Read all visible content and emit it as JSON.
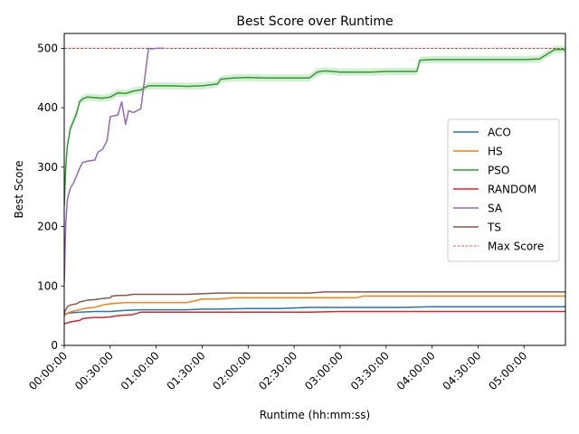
{
  "chart_data": {
    "type": "line",
    "title": "Best Score over Runtime",
    "xlabel": "Runtime (hh:mm:ss)",
    "ylabel": "Best Score",
    "x_unit": "seconds",
    "xlim": [
      0,
      19620
    ],
    "ylim": [
      0,
      525
    ],
    "x_ticks": [
      {
        "value": 0,
        "label": "00:00:00"
      },
      {
        "value": 1800,
        "label": "00:30:00"
      },
      {
        "value": 3600,
        "label": "01:00:00"
      },
      {
        "value": 5400,
        "label": "01:30:00"
      },
      {
        "value": 7200,
        "label": "02:00:00"
      },
      {
        "value": 9000,
        "label": "02:30:00"
      },
      {
        "value": 10800,
        "label": "03:00:00"
      },
      {
        "value": 12600,
        "label": "03:30:00"
      },
      {
        "value": 14400,
        "label": "04:00:00"
      },
      {
        "value": 16200,
        "label": "04:30:00"
      },
      {
        "value": 18000,
        "label": "05:00:00"
      }
    ],
    "y_ticks": [
      0,
      100,
      200,
      300,
      400,
      500
    ],
    "grid": false,
    "legend_position": "center-right",
    "max_score": {
      "name": "Max Score",
      "value": 500,
      "color": "#d62728"
    },
    "series": [
      {
        "name": "ACO",
        "color": "#1f77b4",
        "x": [
          0,
          300,
          600,
          1200,
          1800,
          2100,
          2400,
          3000,
          3600,
          4200,
          4800,
          5400,
          6000,
          7200,
          8400,
          9000,
          9600,
          10800,
          12000,
          13200,
          14400,
          15600,
          16800,
          18000,
          19620
        ],
        "y": [
          53,
          55,
          56,
          57,
          57,
          58,
          59,
          60,
          60,
          60,
          60,
          61,
          61,
          62,
          62,
          63,
          64,
          64,
          64,
          64,
          65,
          65,
          65,
          65,
          65
        ]
      },
      {
        "name": "HS",
        "color": "#ff7f0e",
        "x": [
          0,
          150,
          300,
          600,
          900,
          1200,
          1500,
          1800,
          2100,
          2400,
          3000,
          3600,
          4200,
          4800,
          5100,
          5400,
          6000,
          6600,
          7200,
          8400,
          9600,
          10800,
          11400,
          11700,
          12600,
          14400,
          16200,
          18000,
          19620
        ],
        "y": [
          50,
          55,
          57,
          60,
          63,
          64,
          68,
          70,
          71,
          72,
          72,
          72,
          72,
          72,
          75,
          78,
          78,
          80,
          80,
          80,
          80,
          80,
          80,
          83,
          83,
          83,
          83,
          83,
          83
        ]
      },
      {
        "name": "PSO",
        "color": "#2ca02c",
        "x": [
          0,
          60,
          120,
          240,
          480,
          600,
          720,
          900,
          1200,
          1500,
          1800,
          2100,
          2400,
          2700,
          3000,
          3300,
          3600,
          4200,
          4800,
          5400,
          6000,
          6120,
          6600,
          7200,
          7800,
          8400,
          9000,
          9600,
          9900,
          10200,
          10800,
          11400,
          12000,
          12600,
          13200,
          13800,
          13920,
          14400,
          15000,
          15600,
          16200,
          16800,
          17400,
          18000,
          18600,
          19200,
          19620
        ],
        "y": [
          235,
          300,
          335,
          365,
          390,
          410,
          415,
          418,
          417,
          416,
          418,
          425,
          424,
          428,
          430,
          437,
          437,
          437,
          436,
          437,
          440,
          448,
          450,
          451,
          450,
          450,
          450,
          450,
          460,
          462,
          460,
          460,
          460,
          461,
          461,
          461,
          480,
          481,
          481,
          481,
          481,
          481,
          481,
          481,
          482,
          498,
          498
        ]
      },
      {
        "name": "RANDOM",
        "color": "#d62728",
        "x": [
          0,
          120,
          300,
          600,
          720,
          900,
          1200,
          1500,
          1800,
          2100,
          2400,
          2700,
          3000,
          3600,
          4800,
          6000,
          7200,
          8400,
          9600,
          10800,
          12000,
          14400,
          16800,
          19620
        ],
        "y": [
          36,
          38,
          40,
          42,
          45,
          46,
          47,
          47,
          48,
          50,
          51,
          52,
          56,
          56,
          56,
          56,
          56,
          56,
          56,
          57,
          57,
          57,
          57,
          57
        ]
      },
      {
        "name": "SA",
        "color": "#9467bd",
        "x": [
          0,
          60,
          120,
          240,
          360,
          480,
          600,
          720,
          900,
          1200,
          1320,
          1500,
          1680,
          1800,
          2100,
          2250,
          2400,
          2520,
          2700,
          3000,
          3300,
          3420,
          3600,
          3900
        ],
        "y": [
          105,
          205,
          245,
          265,
          273,
          285,
          298,
          308,
          310,
          312,
          325,
          330,
          345,
          385,
          388,
          410,
          372,
          395,
          392,
          398,
          500,
          499,
          500,
          500
        ]
      },
      {
        "name": "TS",
        "color": "#8c564b",
        "x": [
          0,
          120,
          240,
          480,
          600,
          900,
          1200,
          1500,
          1800,
          1860,
          2100,
          2400,
          2700,
          3000,
          3600,
          4200,
          4800,
          5400,
          6000,
          6600,
          7200,
          8400,
          9600,
          10200,
          10800,
          12000,
          14400,
          16800,
          19620
        ],
        "y": [
          55,
          65,
          68,
          70,
          73,
          76,
          77,
          79,
          80,
          83,
          84,
          84,
          86,
          86,
          86,
          86,
          86,
          87,
          88,
          88,
          88,
          88,
          88,
          90,
          90,
          90,
          90,
          90,
          90
        ]
      }
    ]
  }
}
